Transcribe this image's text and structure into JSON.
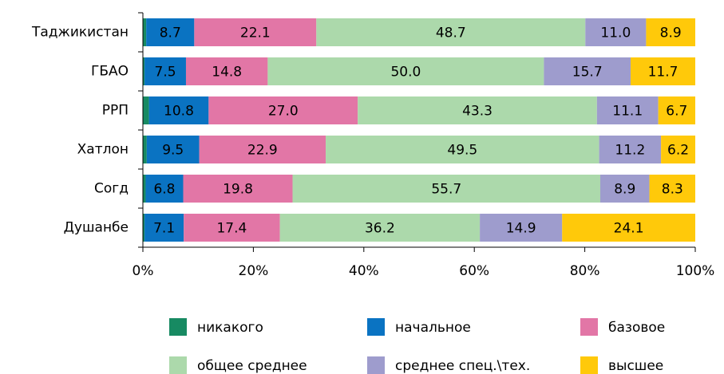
{
  "chart_data": {
    "type": "stacked_barh",
    "categories": [
      "Таджикистан",
      "ГБАО",
      "РРП",
      "Хатлон",
      "Согд",
      "Душанбе"
    ],
    "series": [
      {
        "name": "никакого",
        "color": "#178a62",
        "values": [
          0.6,
          0.3,
          1.1,
          0.7,
          0.5,
          0.3
        ]
      },
      {
        "name": "начальное",
        "color": "#0a73c2",
        "values": [
          8.7,
          7.5,
          10.8,
          9.5,
          6.8,
          7.1
        ],
        "value_labels": [
          "8.7",
          "7.5",
          "10.8",
          "9.5",
          "6.8",
          "7.1"
        ]
      },
      {
        "name": "базовое",
        "color": "#e276a6",
        "values": [
          22.1,
          14.8,
          27.0,
          22.9,
          19.8,
          17.4
        ],
        "value_labels": [
          "22.1",
          "14.8",
          "27.0",
          "22.9",
          "19.8",
          "17.4"
        ]
      },
      {
        "name": "общее среднее",
        "color": "#acd9ab",
        "values": [
          48.7,
          50.0,
          43.3,
          49.5,
          55.7,
          36.2
        ],
        "value_labels": [
          "48.7",
          "50.0",
          "43.3",
          "49.5",
          "55.7",
          "36.2"
        ]
      },
      {
        "name": "среднее спец.\\тех.",
        "color": "#9e9ccd",
        "values": [
          11.0,
          15.7,
          11.1,
          11.2,
          8.9,
          14.9
        ],
        "value_labels": [
          "11.0",
          "15.7",
          "11.1",
          "11.2",
          "8.9",
          "14.9"
        ]
      },
      {
        "name": "высшее",
        "color": "#ffc90a",
        "values": [
          8.9,
          11.7,
          6.7,
          6.2,
          8.3,
          24.1
        ],
        "value_labels": [
          "8.9",
          "11.7",
          "6.7",
          "6.2",
          "8.3",
          "24.1"
        ]
      }
    ],
    "xlim": [
      0,
      100
    ],
    "xticks": [
      {
        "value": 0,
        "label": "0%"
      },
      {
        "value": 20,
        "label": "20%"
      },
      {
        "value": 40,
        "label": "40%"
      },
      {
        "value": 60,
        "label": "60%"
      },
      {
        "value": 80,
        "label": "80%"
      },
      {
        "value": 100,
        "label": "100%"
      }
    ],
    "legend": "bottom"
  }
}
